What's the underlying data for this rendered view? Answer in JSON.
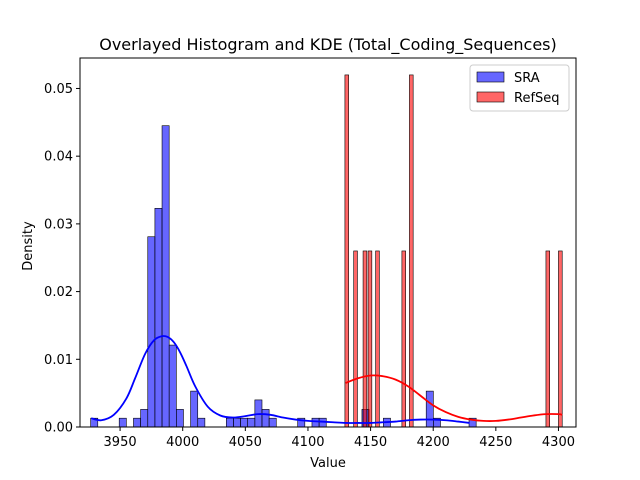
{
  "chart_data": {
    "type": "bar",
    "title": "Overlayed Histogram and KDE (Total_Coding_Sequences)",
    "xlabel": "Value",
    "ylabel": "Density",
    "xlim": [
      3918,
      4314
    ],
    "ylim": [
      0,
      0.0545
    ],
    "xticks": [
      3950,
      4000,
      4050,
      4100,
      4150,
      4200,
      4250,
      4300
    ],
    "yticks": [
      0.0,
      0.01,
      0.02,
      0.03,
      0.04,
      0.05
    ],
    "ytick_labels": [
      "0.00",
      "0.01",
      "0.02",
      "0.03",
      "0.04",
      "0.05"
    ],
    "legend_position": "top-right",
    "grid": false,
    "series": [
      {
        "name": "SRA",
        "color": "#0000ff",
        "bin_width": 5.7,
        "bins": [
          {
            "x0": 3926.5,
            "value": 0.0013
          },
          {
            "x0": 3949.3,
            "value": 0.0013
          },
          {
            "x0": 3960.7,
            "value": 0.0013
          },
          {
            "x0": 3966.4,
            "value": 0.0026
          },
          {
            "x0": 3972.1,
            "value": 0.0281
          },
          {
            "x0": 3977.8,
            "value": 0.0323
          },
          {
            "x0": 3983.5,
            "value": 0.0445
          },
          {
            "x0": 3989.2,
            "value": 0.0121
          },
          {
            "x0": 3994.9,
            "value": 0.0026
          },
          {
            "x0": 4006.3,
            "value": 0.0053
          },
          {
            "x0": 4012.0,
            "value": 0.0013
          },
          {
            "x0": 4034.8,
            "value": 0.0013
          },
          {
            "x0": 4040.5,
            "value": 0.0013
          },
          {
            "x0": 4046.2,
            "value": 0.0013
          },
          {
            "x0": 4051.9,
            "value": 0.0013
          },
          {
            "x0": 4057.6,
            "value": 0.004
          },
          {
            "x0": 4063.3,
            "value": 0.0026
          },
          {
            "x0": 4069.0,
            "value": 0.0013
          },
          {
            "x0": 4091.8,
            "value": 0.0013
          },
          {
            "x0": 4103.2,
            "value": 0.0013
          },
          {
            "x0": 4108.9,
            "value": 0.0013
          },
          {
            "x0": 4143.1,
            "value": 0.0026
          },
          {
            "x0": 4160.2,
            "value": 0.0013
          },
          {
            "x0": 4194.4,
            "value": 0.0053
          },
          {
            "x0": 4200.1,
            "value": 0.0013
          },
          {
            "x0": 4228.6,
            "value": 0.0013
          }
        ],
        "kde": {
          "x": [
            3927,
            3935,
            3945,
            3955,
            3962,
            3970,
            3977,
            3983,
            3988,
            3993,
            3998,
            4003,
            4010,
            4020,
            4030,
            4040,
            4050,
            4060,
            4070,
            4080,
            4090,
            4100,
            4110,
            4120,
            4130,
            4140,
            4150,
            4160,
            4170,
            4180,
            4190,
            4200,
            4210,
            4220,
            4229
          ],
          "y": [
            0.0013,
            0.001,
            0.0018,
            0.0042,
            0.0072,
            0.0108,
            0.0128,
            0.0134,
            0.0133,
            0.0125,
            0.011,
            0.009,
            0.006,
            0.003,
            0.0017,
            0.0014,
            0.0016,
            0.0019,
            0.0018,
            0.0014,
            0.0011,
            0.0009,
            0.0008,
            0.0007,
            0.0006,
            0.0006,
            0.0006,
            0.0007,
            0.0008,
            0.001,
            0.0011,
            0.0011,
            0.001,
            0.0008,
            0.0006
          ]
        }
      },
      {
        "name": "RefSeq",
        "color": "#ff0000",
        "bin_width": 3.0,
        "bins": [
          {
            "x0": 4129.5,
            "value": 0.052
          },
          {
            "x0": 4136.5,
            "value": 0.026
          },
          {
            "x0": 4144.0,
            "value": 0.026
          },
          {
            "x0": 4148.0,
            "value": 0.026
          },
          {
            "x0": 4154.0,
            "value": 0.026
          },
          {
            "x0": 4175.0,
            "value": 0.026
          },
          {
            "x0": 4181.0,
            "value": 0.052
          },
          {
            "x0": 4290.0,
            "value": 0.026
          },
          {
            "x0": 4300.0,
            "value": 0.026
          }
        ],
        "kde": {
          "x": [
            4130,
            4140,
            4150,
            4160,
            4170,
            4180,
            4190,
            4200,
            4210,
            4220,
            4230,
            4240,
            4250,
            4260,
            4270,
            4280,
            4290,
            4300,
            4303
          ],
          "y": [
            0.0065,
            0.0072,
            0.0076,
            0.0075,
            0.007,
            0.006,
            0.0046,
            0.0032,
            0.0022,
            0.0015,
            0.0011,
            0.0009,
            0.0009,
            0.0011,
            0.0014,
            0.0017,
            0.0019,
            0.0019,
            0.0018
          ]
        }
      }
    ]
  }
}
